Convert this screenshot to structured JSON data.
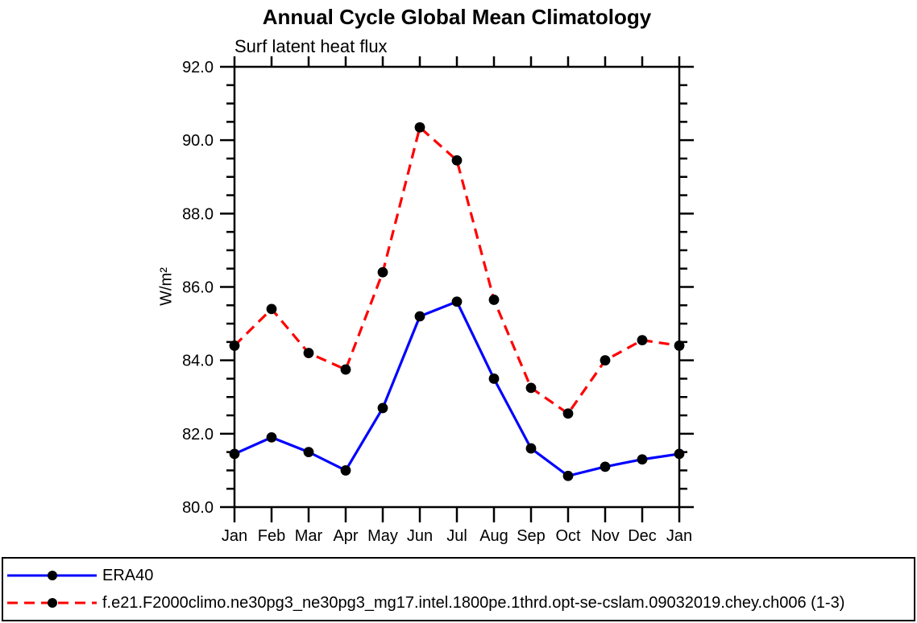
{
  "chart_data": {
    "type": "line",
    "title": "Annual Cycle Global Mean Climatology",
    "subtitle": "Surf latent heat flux",
    "xlabel": "",
    "ylabel": "W/m²",
    "ylim": [
      80,
      92
    ],
    "ytick_interval": 2,
    "ytick_minor_interval": 0.5,
    "ytick_labels": [
      "92.0",
      "90.0",
      "88.0",
      "86.0",
      "84.0",
      "82.0",
      "80.0"
    ],
    "yticks": [
      92,
      90,
      88,
      86,
      84,
      82,
      80
    ],
    "grid": "off",
    "legend_position": "bottom-box",
    "categories": [
      "Jan",
      "Feb",
      "Mar",
      "Apr",
      "May",
      "Jun",
      "Jul",
      "Aug",
      "Sep",
      "Oct",
      "Nov",
      "Dec",
      "Jan"
    ],
    "marker_color": "#000000",
    "axis_color": "#000000",
    "series": [
      {
        "name": "ERA40",
        "color": "#0000ff",
        "dashed": false,
        "values": [
          81.45,
          81.9,
          81.5,
          81.0,
          82.7,
          85.2,
          85.6,
          83.5,
          81.6,
          80.85,
          81.1,
          81.3,
          81.45
        ]
      },
      {
        "name": "f.e21.F2000climo.ne30pg3_ne30pg3_mg17.intel.1800pe.1thrd.opt-se-cslam.09032019.chey.ch006 (1-3)",
        "color": "#ff0000",
        "dashed": true,
        "values": [
          84.4,
          85.4,
          84.2,
          83.75,
          86.4,
          90.35,
          89.45,
          85.65,
          83.25,
          82.55,
          84.0,
          84.55,
          84.4
        ]
      }
    ]
  }
}
